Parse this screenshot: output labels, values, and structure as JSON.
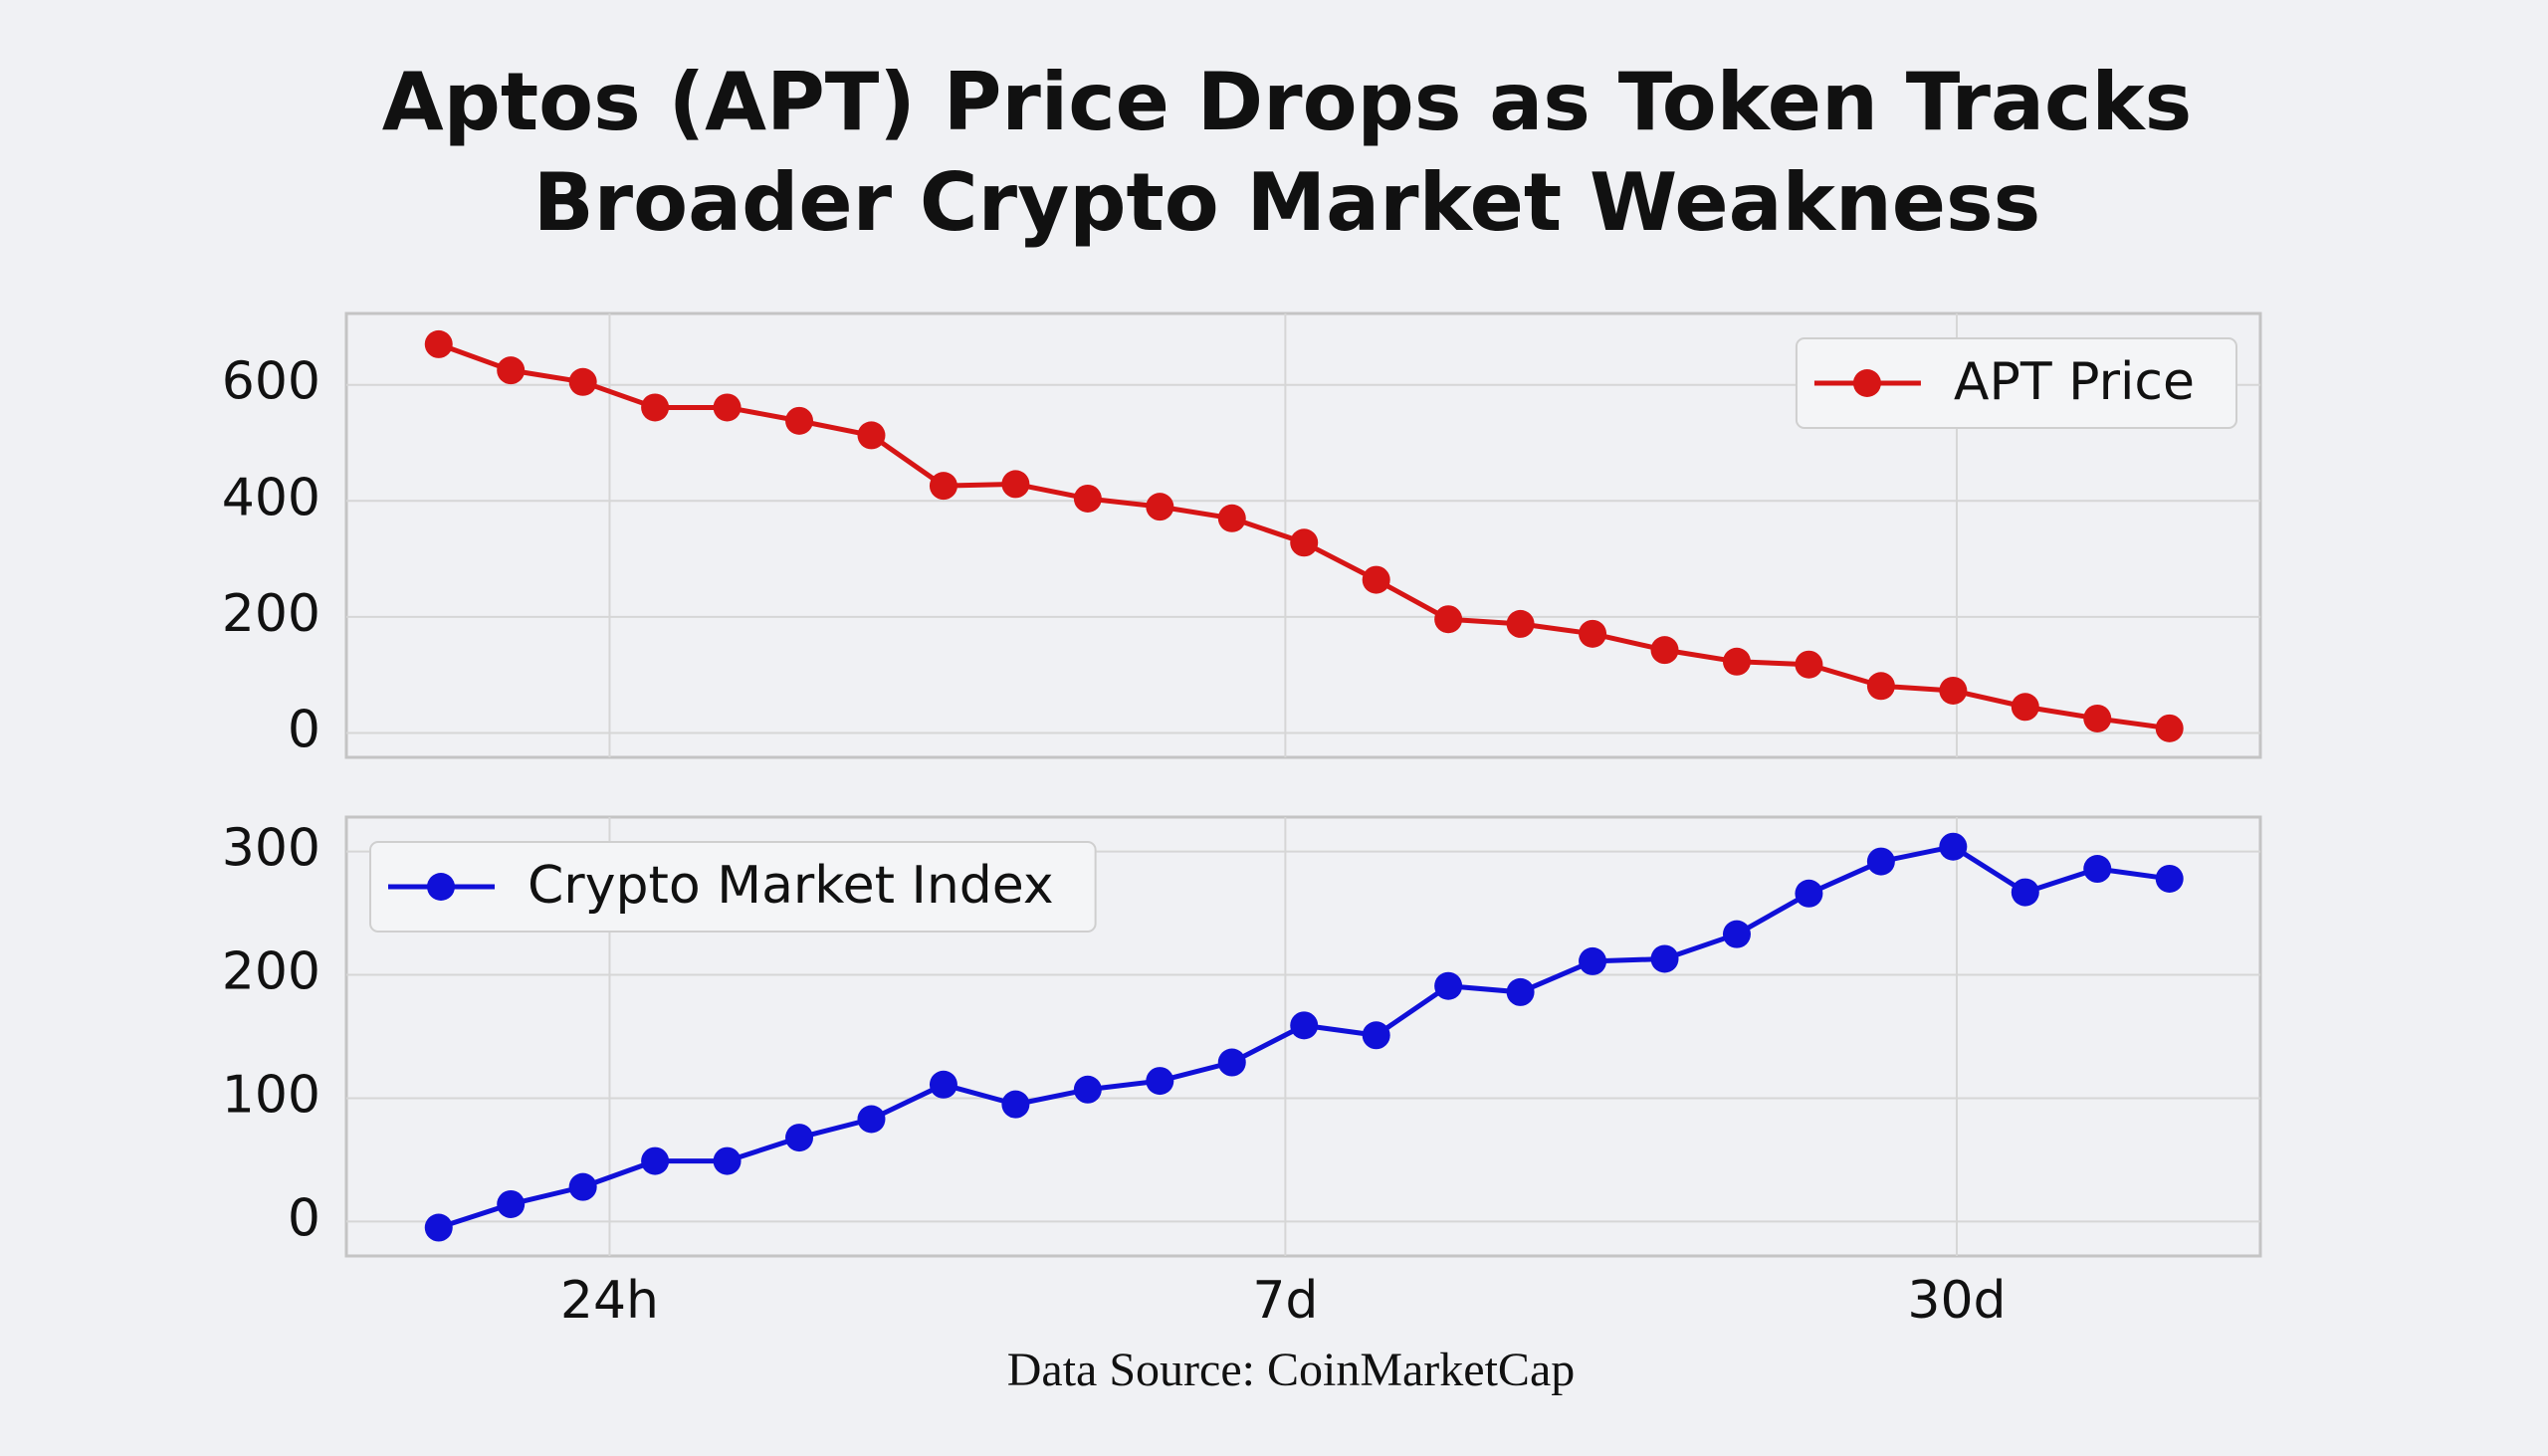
{
  "title": [
    "Aptos (APT) Price Drops as Token Tracks",
    "Broader Crypto Market Weakness"
  ],
  "source": "Data Source: CoinMarketCap",
  "chart_data": [
    {
      "type": "line",
      "x": [
        0,
        1,
        2,
        3,
        4,
        5,
        6,
        7,
        8,
        9,
        10,
        11,
        12,
        13,
        14,
        15,
        16,
        17,
        18,
        19,
        20,
        21,
        22,
        23,
        24
      ],
      "xlim": [
        -1.28,
        25.26
      ],
      "xticks": [
        2.37,
        11.74,
        21.05
      ],
      "ylim": [
        -42,
        723
      ],
      "yticks": [
        0,
        200,
        400,
        600
      ],
      "grid": true,
      "legend": "upper right",
      "series": [
        {
          "name": "APT Price",
          "color": "#d61515",
          "values": [
            670,
            625,
            605,
            561,
            561,
            538,
            513,
            426,
            429,
            404,
            390,
            370,
            328,
            264,
            196,
            188,
            171,
            143,
            123,
            118,
            81,
            73,
            45,
            25,
            8
          ]
        }
      ]
    },
    {
      "type": "line",
      "x": [
        0,
        1,
        2,
        3,
        4,
        5,
        6,
        7,
        8,
        9,
        10,
        11,
        12,
        13,
        14,
        15,
        16,
        17,
        18,
        19,
        20,
        21,
        22,
        23,
        24
      ],
      "xlim": [
        -1.28,
        25.26
      ],
      "xticks": [
        {
          "value": 2.37,
          "label": "24h"
        },
        {
          "value": 11.74,
          "label": "7d"
        },
        {
          "value": 21.05,
          "label": "30d"
        }
      ],
      "ylim": [
        -28,
        328
      ],
      "yticks": [
        0,
        100,
        200,
        300
      ],
      "grid": true,
      "legend": "upper left",
      "series": [
        {
          "name": "Crypto Market Index",
          "color": "#1010d8",
          "values": [
            -5,
            14,
            28,
            49,
            49,
            68,
            83,
            111,
            95,
            107,
            114,
            129,
            159,
            151,
            191,
            186,
            211,
            213,
            233,
            266,
            292,
            304,
            267,
            286,
            278
          ]
        }
      ]
    }
  ]
}
